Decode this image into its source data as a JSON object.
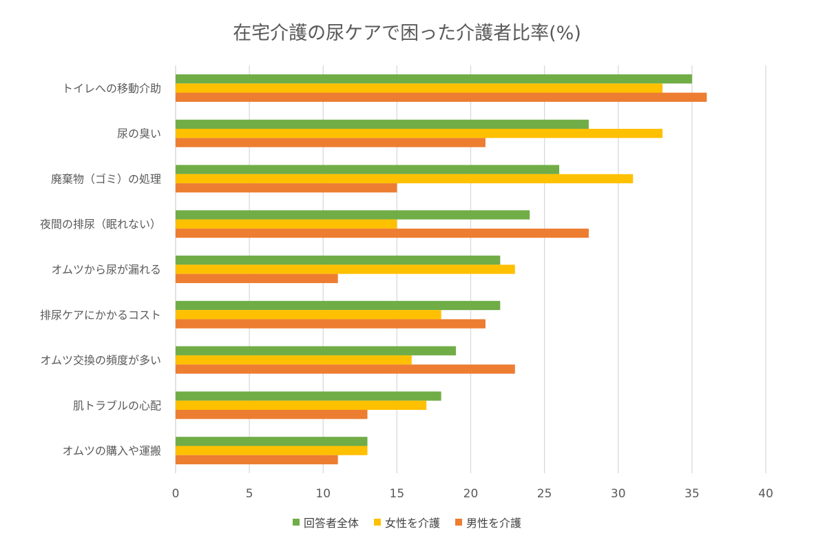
{
  "chart_data": {
    "type": "bar",
    "orientation": "horizontal",
    "title": "在宅介護の尿ケアで困った介護者比率(%)",
    "categories": [
      "トイレへの移動介助",
      "尿の臭い",
      "廃棄物（ゴミ）の処理",
      "夜間の排尿（眠れない）",
      "オムツから尿が漏れる",
      "排尿ケアにかかるコスト",
      "オムツ交換の頻度が多い",
      "肌トラブルの心配",
      "オムツの購入や運搬"
    ],
    "series": [
      {
        "name": "回答者全体",
        "color": "#70ad47",
        "values": [
          35,
          28,
          26,
          24,
          22,
          22,
          19,
          18,
          13
        ]
      },
      {
        "name": "女性を介護",
        "color": "#ffc000",
        "values": [
          33,
          33,
          31,
          15,
          23,
          18,
          16,
          17,
          13
        ]
      },
      {
        "name": "男性を介護",
        "color": "#ed7d31",
        "values": [
          36,
          21,
          15,
          28,
          11,
          21,
          23,
          13,
          11
        ]
      }
    ],
    "xlim": [
      0,
      40
    ],
    "xticks": [
      0,
      5,
      10,
      15,
      20,
      25,
      30,
      35,
      40
    ],
    "grid": true,
    "legend": "bottom"
  }
}
